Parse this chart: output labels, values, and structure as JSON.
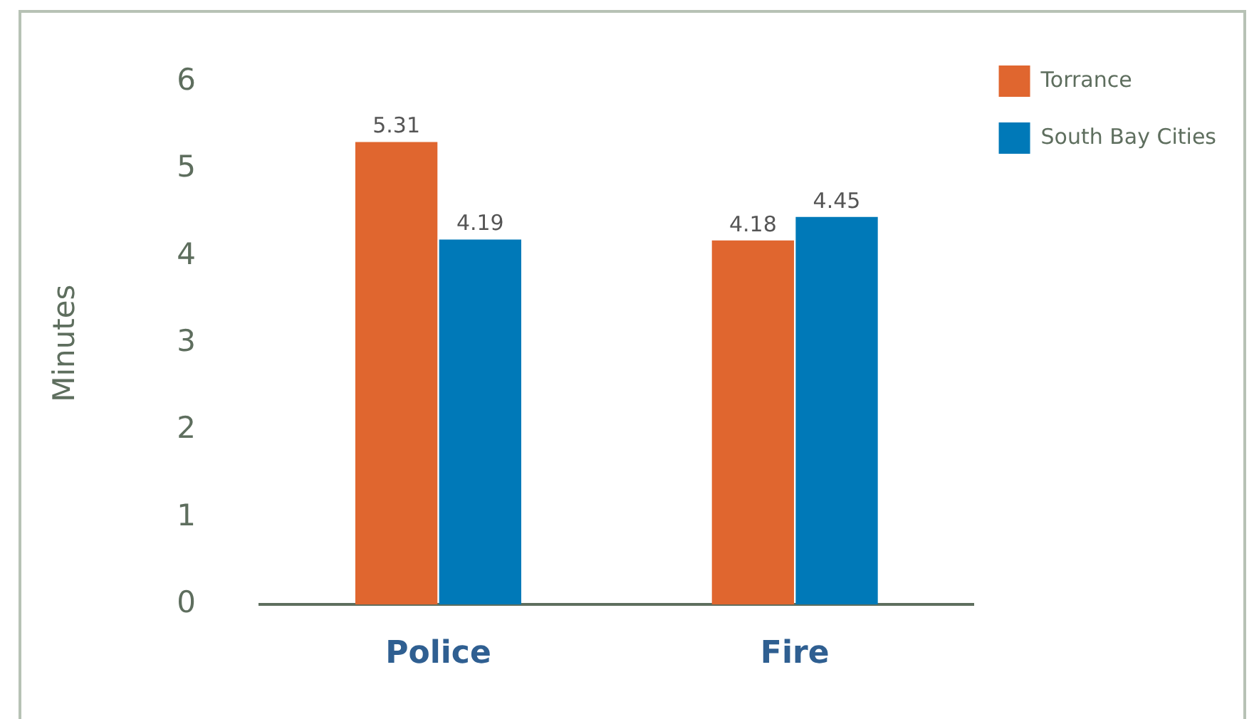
{
  "chart_data": {
    "type": "bar",
    "ylabel": "Minutes",
    "categories": [
      "Police",
      "Fire"
    ],
    "series": [
      {
        "name": "Torrance",
        "color": "#e0662f",
        "values": [
          5.31,
          4.18
        ]
      },
      {
        "name": "South Bay Cities",
        "color": "#0079b8",
        "values": [
          4.19,
          4.45
        ]
      }
    ],
    "ylim": [
      0,
      6
    ],
    "yticks": [
      0,
      1,
      2,
      3,
      4,
      5,
      6
    ],
    "grid": false,
    "legend": "top right",
    "data_labels": true
  }
}
